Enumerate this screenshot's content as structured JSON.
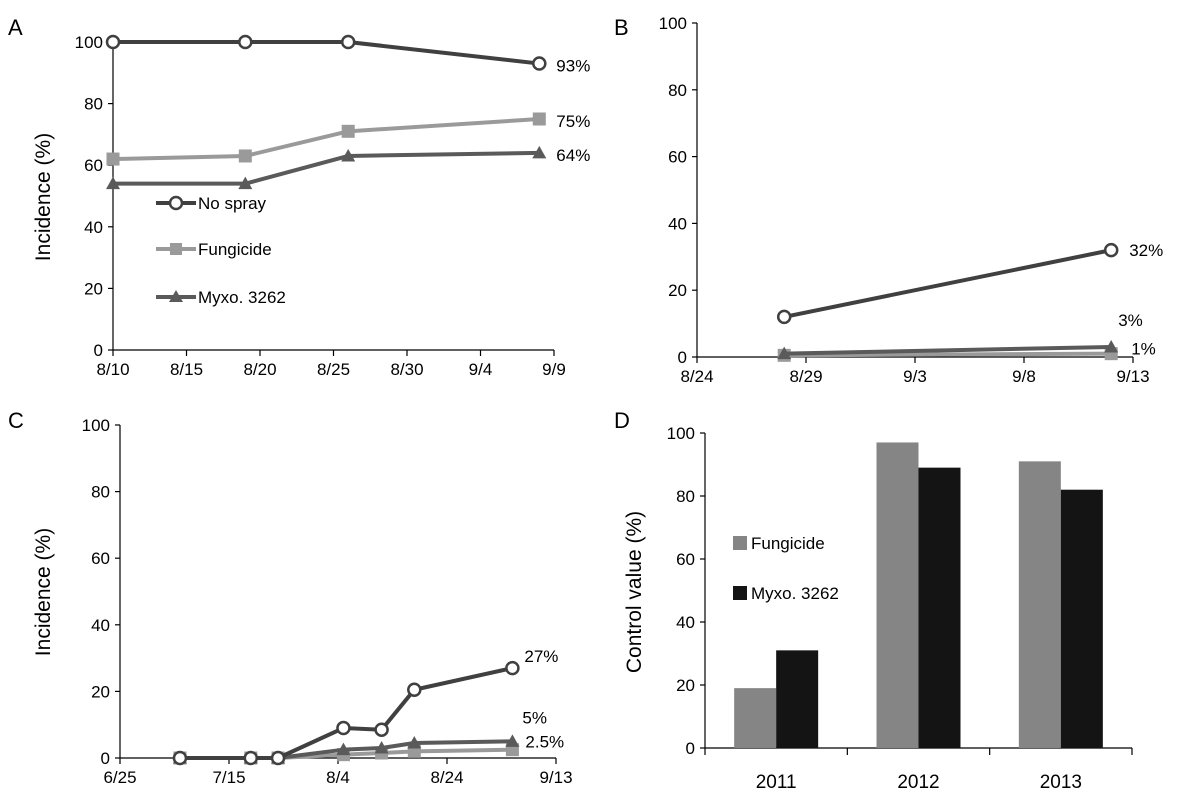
{
  "chart_data": [
    {
      "panel": "A",
      "type": "line",
      "ylabel": "Incidence (%)",
      "ylim": [
        0,
        100
      ],
      "yticks": [
        "0",
        "20",
        "40",
        "60",
        "80",
        "100"
      ],
      "xticks": [
        "8/10",
        "8/15",
        "8/20",
        "8/25",
        "8/30",
        "9/4",
        "9/9"
      ],
      "legend": {
        "position": "left",
        "entries": [
          "No spray",
          "Fungicide",
          "Myxo. 3262"
        ]
      },
      "series": [
        {
          "name": "No spray",
          "color": "#404040",
          "marker": "circle-open",
          "points": [
            [
              "8/10",
              100
            ],
            [
              "8/19",
              100
            ],
            [
              "8/26",
              100
            ],
            [
              "9/8",
              93
            ]
          ],
          "end_label": "93%"
        },
        {
          "name": "Fungicide",
          "color": "#9a9a9a",
          "marker": "square",
          "points": [
            [
              "8/10",
              62
            ],
            [
              "8/19",
              63
            ],
            [
              "8/26",
              71
            ],
            [
              "9/8",
              75
            ]
          ],
          "end_label": "75%"
        },
        {
          "name": "Myxo. 3262",
          "color": "#5a5a5a",
          "marker": "triangle",
          "points": [
            [
              "8/10",
              54
            ],
            [
              "8/19",
              54
            ],
            [
              "8/26",
              63
            ],
            [
              "9/8",
              64
            ]
          ],
          "end_label": "64%"
        }
      ]
    },
    {
      "panel": "B",
      "type": "line",
      "ylabel": "",
      "ylim": [
        0,
        100
      ],
      "yticks": [
        "0",
        "20",
        "40",
        "60",
        "80",
        "100"
      ],
      "xticks": [
        "8/24",
        "8/29",
        "9/3",
        "9/8",
        "9/13"
      ],
      "series": [
        {
          "name": "No spray",
          "color": "#404040",
          "marker": "circle-open",
          "points": [
            [
              "8/28",
              12
            ],
            [
              "9/12",
              32
            ]
          ],
          "end_label": "32%"
        },
        {
          "name": "Fungicide",
          "color": "#9a9a9a",
          "marker": "square",
          "points": [
            [
              "8/28",
              0.5
            ],
            [
              "9/12",
              1
            ]
          ],
          "end_label": "1%"
        },
        {
          "name": "Myxo. 3262",
          "color": "#5a5a5a",
          "marker": "triangle",
          "points": [
            [
              "8/28",
              1
            ],
            [
              "9/12",
              3
            ]
          ],
          "end_label": "3%"
        }
      ]
    },
    {
      "panel": "C",
      "type": "line",
      "ylabel": "Incidence (%)",
      "ylim": [
        0,
        100
      ],
      "yticks": [
        "0",
        "20",
        "40",
        "60",
        "80",
        "100"
      ],
      "xticks": [
        "6/25",
        "7/15",
        "8/4",
        "8/24",
        "9/13"
      ],
      "series": [
        {
          "name": "No spray",
          "color": "#404040",
          "marker": "circle-open",
          "points": [
            [
              "7/6",
              0
            ],
            [
              "7/19",
              0
            ],
            [
              "7/24",
              0
            ],
            [
              "8/5",
              9
            ],
            [
              "8/12",
              8.5
            ],
            [
              "8/18",
              20.5
            ],
            [
              "9/5",
              27
            ]
          ],
          "end_label": "27%"
        },
        {
          "name": "Fungicide",
          "color": "#9a9a9a",
          "marker": "square",
          "points": [
            [
              "7/6",
              0
            ],
            [
              "7/19",
              0
            ],
            [
              "7/24",
              0
            ],
            [
              "8/5",
              1
            ],
            [
              "8/12",
              1.5
            ],
            [
              "8/18",
              2
            ],
            [
              "9/5",
              2.5
            ]
          ],
          "end_label": "2.5%"
        },
        {
          "name": "Myxo. 3262",
          "color": "#5a5a5a",
          "marker": "triangle",
          "points": [
            [
              "7/6",
              0
            ],
            [
              "7/19",
              0
            ],
            [
              "7/24",
              0
            ],
            [
              "8/5",
              2.5
            ],
            [
              "8/12",
              3
            ],
            [
              "8/18",
              4.5
            ],
            [
              "9/5",
              5
            ]
          ],
          "end_label": "5%"
        }
      ]
    },
    {
      "panel": "D",
      "type": "bar",
      "ylabel": "Control value (%)",
      "ylim": [
        0,
        100
      ],
      "yticks": [
        "0",
        "20",
        "40",
        "60",
        "80",
        "100"
      ],
      "categories": [
        "2011",
        "2012",
        "2013"
      ],
      "legend": {
        "position": "left",
        "entries": [
          "Fungicide",
          "Myxo. 3262"
        ]
      },
      "series": [
        {
          "name": "Fungicide",
          "color": "#858585",
          "values": [
            19,
            97,
            91
          ]
        },
        {
          "name": "Myxo. 3262",
          "color": "#141414",
          "values": [
            31,
            89,
            82
          ]
        }
      ]
    }
  ]
}
